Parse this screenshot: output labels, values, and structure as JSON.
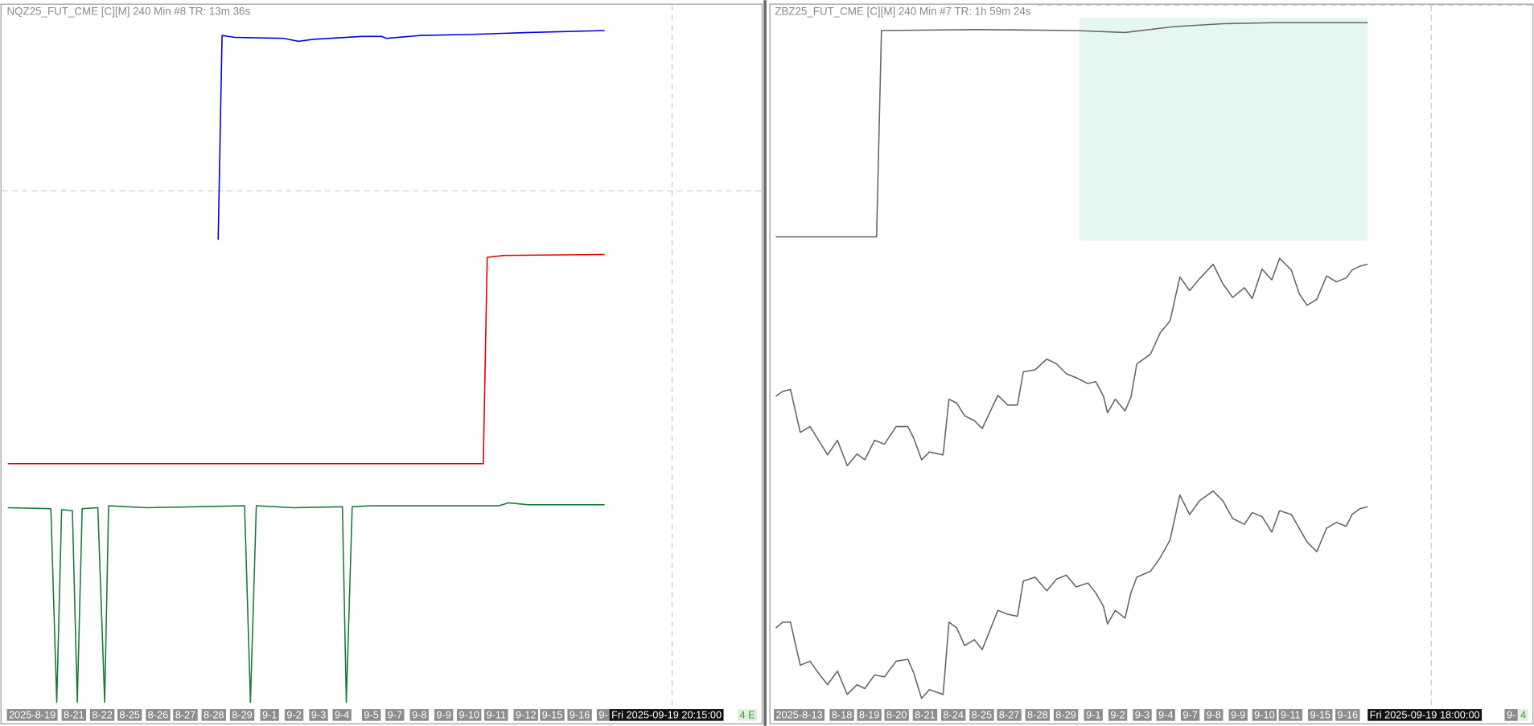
{
  "left_panel": {
    "header": "NQZ25_FUT_CME [C][M]  240 Min  #8 TR: 13m 36s",
    "dates": [
      "2025-8-19",
      "8-21",
      "8-22",
      "8-25",
      "8-26",
      "8-27",
      "8-28",
      "8-29",
      "9-1",
      "9-2",
      "9-3",
      "9-4",
      "9-5",
      "9-7",
      "9-8",
      "9-9",
      "9-10",
      "9-11",
      "9-12",
      "9-15",
      "9-16",
      "9-"
    ],
    "time_label": "Fri 2025-09-19  20:15:00",
    "corner_label": "4 E"
  },
  "right_panel": {
    "header": "ZBZ25_FUT_CME [C][M]  240 Min  #7 TR: 1h 59m 24s",
    "dates": [
      "2025-8-13",
      "8-18",
      "8-19",
      "8-20",
      "8-21",
      "8-24",
      "8-25",
      "8-27",
      "8-28",
      "8-29",
      "9-1",
      "9-2",
      "9-3",
      "9-4",
      "9-7",
      "9-8",
      "9-9",
      "9-10",
      "9-11",
      "9-15",
      "9-16"
    ],
    "time_label": "Fri 2025-09-19  18:00:00",
    "edge_label": "9-",
    "corner_label": "4"
  }
}
